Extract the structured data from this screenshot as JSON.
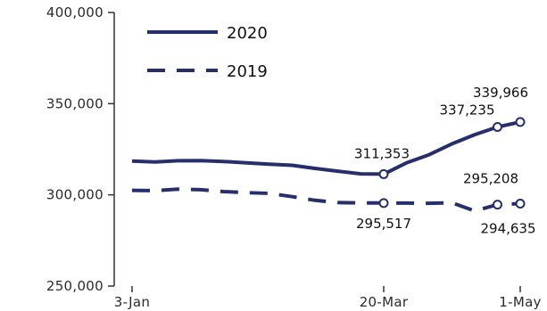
{
  "chart_data": {
    "type": "line",
    "x_ticks": [
      "3-Jan",
      "20-Mar",
      "1-May"
    ],
    "y_ticks": [
      "250,000",
      "300,000",
      "350,000",
      "400,000"
    ],
    "ylim": [
      250000,
      400000
    ],
    "grid": false,
    "legend_position": "top-left",
    "colors": {
      "line": "#262f6b",
      "marker_fill": "#ffffff"
    },
    "series": [
      {
        "name": "2020",
        "style": "solid",
        "points": [
          {
            "x": "3-Jan",
            "y": 318500
          },
          {
            "x": "10-Jan",
            "y": 318000
          },
          {
            "x": "17-Jan",
            "y": 318700
          },
          {
            "x": "24-Jan",
            "y": 318800
          },
          {
            "x": "31-Jan",
            "y": 318300
          },
          {
            "x": "7-Feb",
            "y": 317500
          },
          {
            "x": "14-Feb",
            "y": 316800
          },
          {
            "x": "21-Feb",
            "y": 316200
          },
          {
            "x": "28-Feb",
            "y": 314500
          },
          {
            "x": "6-Mar",
            "y": 313000
          },
          {
            "x": "13-Mar",
            "y": 311500
          },
          {
            "x": "20-Mar",
            "y": 311353
          },
          {
            "x": "27-Mar",
            "y": 317500
          },
          {
            "x": "3-Apr",
            "y": 322000
          },
          {
            "x": "10-Apr",
            "y": 328000
          },
          {
            "x": "17-Apr",
            "y": 333000
          },
          {
            "x": "24-Apr",
            "y": 337235
          },
          {
            "x": "1-May",
            "y": 339966
          }
        ],
        "labels": [
          {
            "x": "20-Mar",
            "text": "311,353"
          },
          {
            "x": "24-Apr",
            "text": "337,235"
          },
          {
            "x": "1-May",
            "text": "339,966"
          }
        ]
      },
      {
        "name": "2019",
        "style": "dashed",
        "points": [
          {
            "x": "3-Jan",
            "y": 302500
          },
          {
            "x": "10-Jan",
            "y": 302300
          },
          {
            "x": "17-Jan",
            "y": 303100
          },
          {
            "x": "24-Jan",
            "y": 302800
          },
          {
            "x": "31-Jan",
            "y": 301800
          },
          {
            "x": "7-Feb",
            "y": 301200
          },
          {
            "x": "14-Feb",
            "y": 300800
          },
          {
            "x": "21-Feb",
            "y": 299000
          },
          {
            "x": "28-Feb",
            "y": 297000
          },
          {
            "x": "6-Mar",
            "y": 295800
          },
          {
            "x": "13-Mar",
            "y": 295600
          },
          {
            "x": "20-Mar",
            "y": 295517
          },
          {
            "x": "27-Mar",
            "y": 295500
          },
          {
            "x": "3-Apr",
            "y": 295400
          },
          {
            "x": "10-Apr",
            "y": 295700
          },
          {
            "x": "17-Apr",
            "y": 291200
          },
          {
            "x": "24-Apr",
            "y": 294635
          },
          {
            "x": "1-May",
            "y": 295208
          }
        ],
        "labels": [
          {
            "x": "20-Mar",
            "text": "295,517"
          },
          {
            "x": "24-Apr",
            "text": "294,635"
          },
          {
            "x": "1-May",
            "text": "295,208"
          }
        ]
      }
    ]
  }
}
